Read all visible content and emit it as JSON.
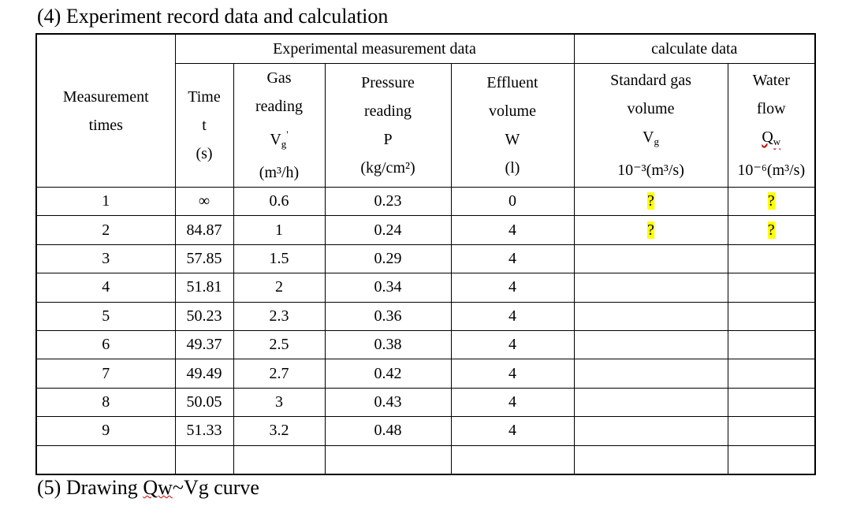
{
  "title": "(4) Experiment record data and calculation",
  "table": {
    "corner": {
      "lines": [
        "Measurement",
        "times"
      ]
    },
    "groups": [
      "Experimental measurement data",
      "calculate data"
    ],
    "columns": [
      {
        "lines": [
          "Time",
          "t",
          "(s)"
        ]
      },
      {
        "lines": [
          "Gas",
          "reading",
          {
            "base": "V",
            "sub": "g",
            "sup": "'"
          },
          "(m³/h)"
        ]
      },
      {
        "lines": [
          "Pressure",
          "reading",
          "P",
          "(kg/cm²)"
        ]
      },
      {
        "lines": [
          "Effluent",
          "volume",
          "W",
          "(l)"
        ]
      },
      {
        "lines": [
          "Standard gas",
          "volume",
          {
            "base": "V",
            "sub": "g"
          },
          "10⁻³(m³/s)"
        ]
      },
      {
        "lines": [
          "Water",
          "flow",
          {
            "base": "Q",
            "sub": "w"
          },
          "10⁻⁶(m³/s)"
        ]
      }
    ],
    "rows": [
      [
        1,
        "∞",
        0.6,
        0.23,
        0,
        "?",
        "?"
      ],
      [
        2,
        84.87,
        1,
        0.24,
        4,
        "?",
        "?"
      ],
      [
        3,
        57.85,
        1.5,
        0.29,
        4
      ],
      [
        4,
        51.81,
        2,
        0.34,
        4
      ],
      [
        5,
        50.23,
        2.3,
        0.36,
        4
      ],
      [
        6,
        49.37,
        2.5,
        0.38,
        4
      ],
      [
        7,
        49.49,
        2.7,
        0.42,
        4
      ],
      [
        8,
        50.05,
        3,
        0.43,
        4
      ],
      [
        9,
        51.33,
        3.2,
        0.48,
        4
      ]
    ]
  },
  "footer": {
    "label": "(5)",
    "before": "Drawing",
    "underlined": "Qw",
    "after": "~Vg curve"
  }
}
